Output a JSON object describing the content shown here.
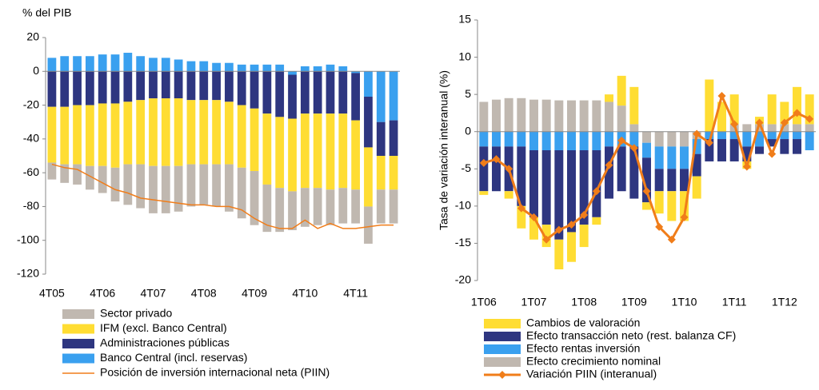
{
  "chart_data": [
    {
      "type": "bar",
      "stacked": true,
      "ylabel": "% del PIB",
      "categories": [
        "4T05",
        null,
        null,
        null,
        "4T06",
        null,
        null,
        null,
        "4T07",
        null,
        null,
        null,
        "4T08",
        null,
        null,
        null,
        "4T09",
        null,
        null,
        null,
        "4T10",
        null,
        null,
        null,
        "4T11",
        null,
        null,
        null
      ],
      "ylim": [
        -120,
        20
      ],
      "yticks": [
        20,
        0,
        -20,
        -40,
        -60,
        -80,
        -100,
        -120
      ],
      "series": [
        {
          "name": "Sector privado",
          "color": "#c0b8b0",
          "values": [
            -10,
            -11,
            -12,
            -14,
            -16,
            -20,
            -24,
            -26,
            -28,
            -28,
            -27,
            -25,
            -24,
            -25,
            -28,
            -30,
            -32,
            -28,
            -26,
            -23,
            -23,
            -22,
            -21,
            -21,
            -20,
            -22,
            -20,
            -20
          ]
        },
        {
          "name": "IFM (excl. Banco Central)",
          "color": "#ffdd33",
          "values": [
            -33,
            -34,
            -35,
            -36,
            -37,
            -38,
            -37,
            -38,
            -40,
            -40,
            -40,
            -38,
            -38,
            -38,
            -37,
            -37,
            -37,
            -42,
            -42,
            -43,
            -44,
            -44,
            -45,
            -44,
            -41,
            -35,
            -20,
            -20
          ]
        },
        {
          "name": "Administraciones públicas",
          "color": "#2e3680",
          "values": [
            -21,
            -21,
            -20,
            -20,
            -19,
            -19,
            -18,
            -17,
            -16,
            -16,
            -16,
            -17,
            -17,
            -17,
            -18,
            -20,
            -22,
            -25,
            -27,
            -26,
            -25,
            -25,
            -25,
            -25,
            -28,
            -30,
            -20,
            -21
          ]
        },
        {
          "name": "Banco Central (incl. reservas)",
          "color": "#3aa0ef",
          "values": [
            8,
            9,
            9,
            9,
            10,
            10,
            11,
            9,
            8,
            8,
            7,
            6,
            6,
            5,
            5,
            4,
            4,
            4,
            4,
            -2,
            3,
            3,
            4,
            3,
            -1,
            -15,
            -30,
            -29
          ]
        },
        {
          "name": "Posición de inversión internacional neta (PIIN)",
          "color": "#f07d1a",
          "type": "line",
          "values": [
            -55,
            -57,
            -58,
            -62,
            -66,
            -70,
            -72,
            -75,
            -76,
            -77,
            -78,
            -79,
            -79,
            -80,
            -80,
            -82,
            -87,
            -91,
            -93,
            -93,
            -88,
            -93,
            -90,
            -93,
            -93,
            -92,
            -91,
            -91
          ]
        }
      ]
    },
    {
      "type": "bar",
      "stacked": true,
      "ylabel": "Tasa de variación interanual (%)",
      "categories": [
        "1T06",
        null,
        null,
        null,
        "1T07",
        null,
        null,
        null,
        "1T08",
        null,
        null,
        null,
        "1T09",
        null,
        null,
        null,
        "1T10",
        null,
        null,
        null,
        "1T11",
        null,
        null,
        null,
        "1T12",
        null,
        null
      ],
      "ylim": [
        -20,
        15
      ],
      "yticks": [
        15,
        10,
        5,
        0,
        -5,
        -10,
        -15,
        -20
      ],
      "series": [
        {
          "name": "Cambios de valoración",
          "color": "#ffdd33",
          "values": [
            -0.5,
            0,
            -1,
            -3,
            -3,
            -3,
            -4,
            -4,
            -3,
            -1,
            1,
            4,
            5,
            -1,
            -3,
            -4,
            -4,
            -3,
            7,
            4,
            4,
            -1,
            1,
            4,
            3,
            5,
            4
          ]
        },
        {
          "name": "Efecto transacción neto (rest. balanza CF)",
          "color": "#2e3680",
          "values": [
            -6,
            -6,
            -6,
            -8,
            -9,
            -10,
            -12,
            -11,
            -10,
            -9,
            -7,
            -6,
            -7,
            -6,
            -3,
            -3,
            -3,
            -3,
            -3,
            -3,
            -3,
            -2,
            -1,
            -1,
            -2,
            -2,
            0
          ]
        },
        {
          "name": "Efecto rentas inversión",
          "color": "#3aa0ef",
          "values": [
            -2,
            -2,
            -2,
            -2,
            -2.5,
            -2.5,
            -2.5,
            -2.5,
            -2.5,
            -2.5,
            -2,
            -2,
            -2,
            -2,
            -3,
            -3,
            -3,
            -2,
            -1,
            -1,
            -1,
            -2,
            -2,
            -1,
            -1,
            -1,
            -2.5
          ]
        },
        {
          "name": "Efecto crecimiento nominal",
          "color": "#c0b8b0",
          "values": [
            4,
            4.3,
            4.5,
            4.5,
            4.3,
            4.3,
            4.2,
            4.2,
            4.2,
            4.2,
            4,
            3.5,
            1,
            -1.5,
            -2,
            -2,
            -2,
            -1,
            0,
            0,
            1,
            1,
            1,
            1,
            1,
            1,
            1
          ]
        },
        {
          "name": "Variación PIIN (interanual)",
          "color": "#f07d1a",
          "type": "line",
          "marker": "diamond",
          "values": [
            -4.2,
            -3.7,
            -5,
            -10.3,
            -11.5,
            -14.5,
            -13.2,
            -12.5,
            -11.2,
            -8,
            -4.5,
            -1.2,
            -2.2,
            -8,
            -12.8,
            -14.5,
            -11.5,
            -0.3,
            -1.5,
            4.8,
            1,
            -4.7,
            1.2,
            -3,
            1.2,
            2.5,
            1.7
          ]
        }
      ]
    }
  ]
}
